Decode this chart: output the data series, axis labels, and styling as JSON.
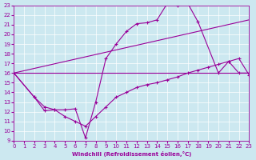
{
  "xlabel": "Windchill (Refroidissement éolien,°C)",
  "bg_color": "#cce8f0",
  "line_color": "#990099",
  "grid_color": "#ffffff",
  "xlim": [
    0,
    23
  ],
  "ylim": [
    9,
    23
  ],
  "xticks": [
    0,
    1,
    2,
    3,
    4,
    5,
    6,
    7,
    8,
    9,
    10,
    11,
    12,
    13,
    14,
    15,
    16,
    17,
    18,
    19,
    20,
    21,
    22,
    23
  ],
  "yticks": [
    9,
    10,
    11,
    12,
    13,
    14,
    15,
    16,
    17,
    18,
    19,
    20,
    21,
    22,
    23
  ],
  "upper_straight": {
    "x": [
      0,
      23
    ],
    "y": [
      16.0,
      21.5
    ]
  },
  "lower_straight": {
    "x": [
      0,
      23
    ],
    "y": [
      16.0,
      16.0
    ]
  },
  "zigzag1_x": [
    0,
    2,
    3,
    4,
    5,
    6,
    7,
    8,
    9,
    10,
    11,
    12,
    13,
    14,
    15,
    16,
    17,
    18,
    20,
    21,
    22,
    23
  ],
  "zigzag1_y": [
    16.0,
    13.5,
    12.1,
    12.2,
    12.2,
    12.3,
    9.3,
    13.0,
    17.5,
    19.0,
    20.3,
    21.1,
    21.2,
    21.5,
    23.2,
    23.0,
    23.2,
    21.3,
    16.0,
    17.2,
    16.0,
    16.0
  ],
  "zigzag2_x": [
    0,
    2,
    3,
    4,
    5,
    6,
    7,
    8,
    9,
    10,
    11,
    12,
    13,
    14,
    15,
    16,
    17,
    18,
    19,
    20,
    21,
    22,
    23
  ],
  "zigzag2_y": [
    16.0,
    13.5,
    12.5,
    12.2,
    11.5,
    11.0,
    10.5,
    11.5,
    12.5,
    13.5,
    14.0,
    14.5,
    14.8,
    15.0,
    15.3,
    15.6,
    16.0,
    16.3,
    16.6,
    16.9,
    17.2,
    17.5,
    15.8
  ]
}
